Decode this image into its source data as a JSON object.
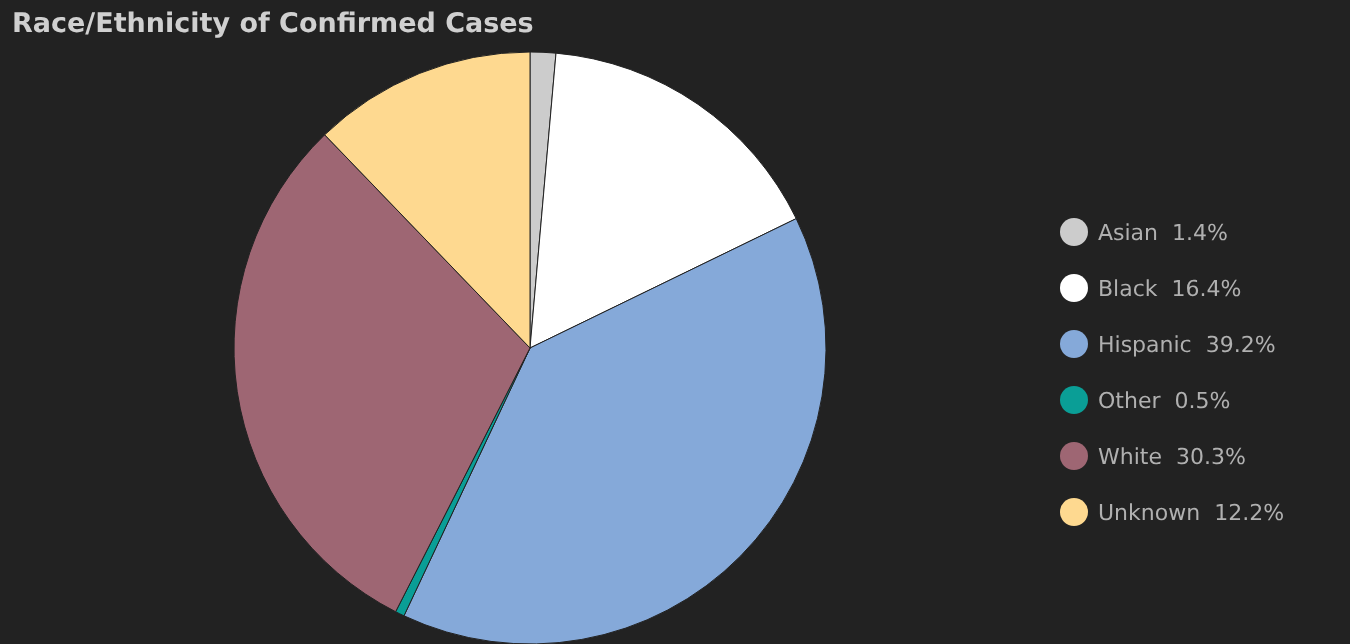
{
  "chart_data": {
    "type": "pie",
    "title": "Race/Ethnicity of Confirmed Cases",
    "categories": [
      "Asian",
      "Black",
      "Hispanic",
      "Other",
      "White",
      "Unknown"
    ],
    "values": [
      1.4,
      16.4,
      39.2,
      0.5,
      30.3,
      12.2
    ],
    "value_labels": [
      "1.4%",
      "16.4%",
      "39.2%",
      "0.5%",
      "30.3%",
      "12.2%"
    ],
    "colors": [
      "#cccccc",
      "#ffffff",
      "#85a9d9",
      "#0a9e96",
      "#9e6673",
      "#fed990"
    ],
    "legend": "right"
  }
}
